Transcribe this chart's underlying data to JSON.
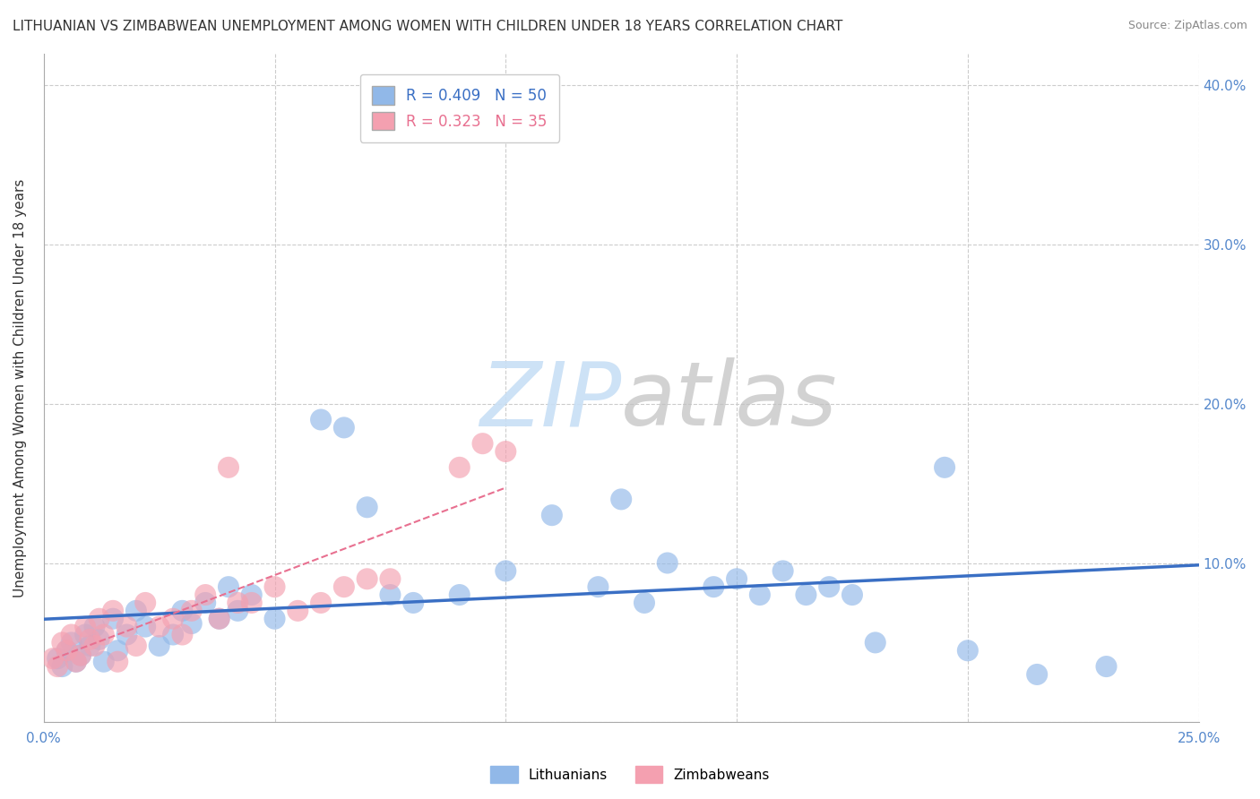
{
  "title": "LITHUANIAN VS ZIMBABWEAN UNEMPLOYMENT AMONG WOMEN WITH CHILDREN UNDER 18 YEARS CORRELATION CHART",
  "source": "Source: ZipAtlas.com",
  "ylabel": "Unemployment Among Women with Children Under 18 years",
  "r_lithuanian": 0.409,
  "n_lithuanian": 50,
  "r_zimbabwean": 0.323,
  "n_zimbabwean": 35,
  "xlim": [
    0.0,
    0.25
  ],
  "ylim": [
    0.0,
    0.42
  ],
  "yticks_right": [
    0.0,
    0.1,
    0.2,
    0.3,
    0.4
  ],
  "ytick_labels_right": [
    "",
    "10.0%",
    "20.0%",
    "30.0%",
    "40.0%"
  ],
  "xticks": [
    0.0,
    0.05,
    0.1,
    0.15,
    0.2,
    0.25
  ],
  "xtick_labels": [
    "0.0%",
    "",
    "",
    "",
    "",
    "25.0%"
  ],
  "color_lithuanian": "#91b8e8",
  "color_zimbabwean": "#f4a0b0",
  "line_color_lithuanian": "#3a6fc4",
  "line_color_zimbabwean": "#e87090",
  "background_color": "#ffffff",
  "grid_color": "#cccccc",
  "lithuanians_x": [
    0.003,
    0.004,
    0.005,
    0.006,
    0.007,
    0.008,
    0.009,
    0.01,
    0.011,
    0.012,
    0.013,
    0.015,
    0.016,
    0.018,
    0.02,
    0.022,
    0.025,
    0.028,
    0.03,
    0.032,
    0.035,
    0.038,
    0.04,
    0.042,
    0.045,
    0.05,
    0.06,
    0.065,
    0.07,
    0.075,
    0.08,
    0.09,
    0.1,
    0.11,
    0.12,
    0.125,
    0.13,
    0.135,
    0.145,
    0.15,
    0.155,
    0.16,
    0.165,
    0.17,
    0.175,
    0.18,
    0.195,
    0.2,
    0.215,
    0.23
  ],
  "lithuanians_y": [
    0.04,
    0.035,
    0.045,
    0.05,
    0.038,
    0.042,
    0.055,
    0.048,
    0.06,
    0.052,
    0.038,
    0.065,
    0.045,
    0.055,
    0.07,
    0.06,
    0.048,
    0.055,
    0.07,
    0.062,
    0.075,
    0.065,
    0.085,
    0.07,
    0.08,
    0.065,
    0.19,
    0.185,
    0.135,
    0.08,
    0.075,
    0.08,
    0.095,
    0.13,
    0.085,
    0.14,
    0.075,
    0.1,
    0.085,
    0.09,
    0.08,
    0.095,
    0.08,
    0.085,
    0.08,
    0.05,
    0.16,
    0.045,
    0.03,
    0.035
  ],
  "zimbabweans_x": [
    0.002,
    0.003,
    0.004,
    0.005,
    0.006,
    0.007,
    0.008,
    0.009,
    0.01,
    0.011,
    0.012,
    0.013,
    0.015,
    0.016,
    0.018,
    0.02,
    0.022,
    0.025,
    0.028,
    0.03,
    0.032,
    0.035,
    0.038,
    0.04,
    0.042,
    0.045,
    0.05,
    0.055,
    0.06,
    0.065,
    0.07,
    0.075,
    0.09,
    0.095,
    0.1
  ],
  "zimbabweans_y": [
    0.04,
    0.035,
    0.05,
    0.045,
    0.055,
    0.038,
    0.042,
    0.06,
    0.052,
    0.048,
    0.065,
    0.055,
    0.07,
    0.038,
    0.06,
    0.048,
    0.075,
    0.06,
    0.065,
    0.055,
    0.07,
    0.08,
    0.065,
    0.16,
    0.075,
    0.075,
    0.085,
    0.07,
    0.075,
    0.085,
    0.09,
    0.09,
    0.16,
    0.175,
    0.17
  ]
}
